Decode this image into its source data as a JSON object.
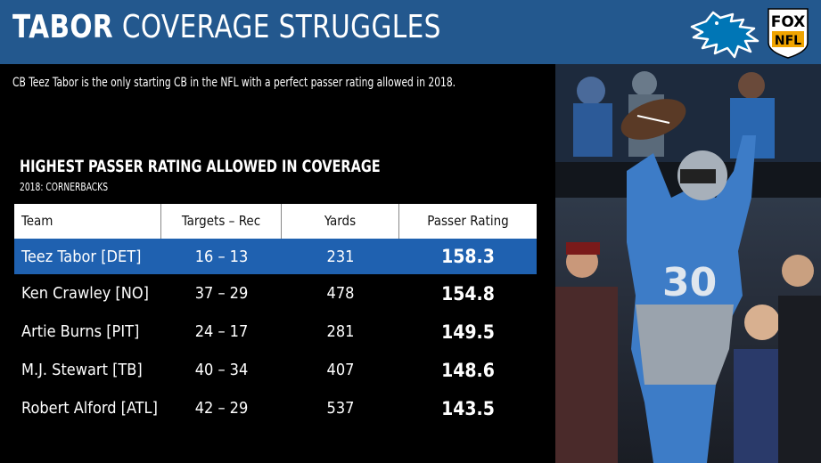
{
  "header": {
    "title_bold": "TABOR",
    "title_rest": "COVERAGE STRUGGLES",
    "network_line1": "FOX",
    "network_line2": "NFL"
  },
  "subtitle": "CB Teez Tabor is the only starting CB in the NFL with a perfect passer rating allowed in 2018.",
  "table": {
    "heading": "HIGHEST PASSER RATING ALLOWED IN COVERAGE",
    "subheading": "2018: CORNERBACKS",
    "columns": [
      "Team",
      "Targets – Rec",
      "Yards",
      "Passer Rating"
    ],
    "rows": [
      {
        "team": "Teez Tabor [DET]",
        "targets_rec": "16 – 13",
        "yards": "231",
        "rating": "158.3"
      },
      {
        "team": "Ken Crawley [NO]",
        "targets_rec": "37 – 29",
        "yards": "478",
        "rating": "154.8"
      },
      {
        "team": "Artie Burns [PIT]",
        "targets_rec": "24 – 17",
        "yards": "281",
        "rating": "149.5"
      },
      {
        "team": "M.J. Stewart [TB]",
        "targets_rec": "40 – 34",
        "yards": "407",
        "rating": "148.6"
      },
      {
        "team": "Robert Alford [ATL]",
        "targets_rec": "42 – 29",
        "yards": "537",
        "rating": "143.5"
      }
    ]
  },
  "photo": {
    "jersey_number": "30"
  },
  "colors": {
    "banner": "#23588e",
    "highlight_row": "#1f61b0",
    "lions_blue": "#0076b6"
  }
}
